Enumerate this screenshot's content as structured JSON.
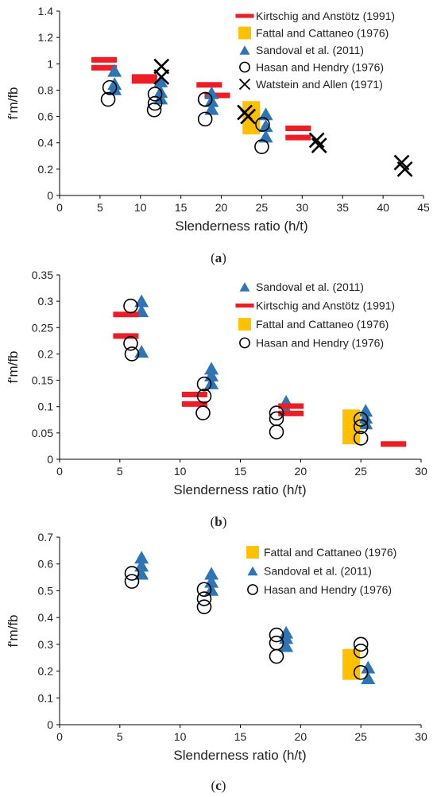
{
  "colors": {
    "kirtschig": "#ee1c24",
    "fattal": "#ffc000",
    "sandoval": "#2e75b6",
    "hasan": "#000000",
    "watstein": "#000000"
  },
  "chart_data": [
    {
      "type": "scatter",
      "panel_label": "a",
      "xlabel": "Slenderness ratio (h/t)",
      "ylabel": "f'm/fb",
      "xlim": [
        0,
        45
      ],
      "ylim": [
        0,
        1.4
      ],
      "xticks": [
        "0",
        "5",
        "10",
        "15",
        "20",
        "25",
        "30",
        "35",
        "40",
        "45"
      ],
      "yticks": [
        "0",
        "0.2",
        "0.4",
        "0.6",
        "0.8",
        "1",
        "1.2",
        "1.4"
      ],
      "grid": false,
      "legend": "top-right",
      "series": [
        {
          "name": "Kirtschig and Anstötz (1991)",
          "marker": "dash",
          "color_key": "kirtschig",
          "x": [
            5.5,
            5.5,
            10.5,
            10.5,
            18.5,
            19.5,
            29.5,
            29.5
          ],
          "y": [
            1.03,
            0.97,
            0.9,
            0.87,
            0.84,
            0.76,
            0.51,
            0.44
          ]
        },
        {
          "name": "Fattal and Cattaneo (1976)",
          "marker": "square",
          "color_key": "fattal",
          "x": [
            23.7,
            23.7
          ],
          "y": [
            0.65,
            0.53
          ]
        },
        {
          "name": "Sandoval et al. (2011)",
          "marker": "triangle",
          "color_key": "sandoval",
          "x": [
            6.8,
            6.8,
            6.8,
            12.5,
            12.5,
            12.5,
            18.8,
            18.8,
            18.8,
            25.5,
            25.5,
            25.5
          ],
          "y": [
            0.95,
            0.85,
            0.81,
            0.87,
            0.79,
            0.74,
            0.78,
            0.72,
            0.66,
            0.62,
            0.53,
            0.45
          ]
        },
        {
          "name": "Hasan and Hendry (1976)",
          "marker": "circle",
          "color_key": "hasan",
          "x": [
            6.2,
            6.0,
            11.8,
            11.8,
            11.7,
            18.0,
            18.0,
            18.0,
            25.1,
            25.0
          ],
          "y": [
            0.82,
            0.73,
            0.77,
            0.7,
            0.65,
            0.73,
            0.58,
            0.73,
            0.54,
            0.37
          ]
        },
        {
          "name": "Watstein and Allen (1971)",
          "marker": "x",
          "color_key": "watstein",
          "x": [
            12.6,
            12.6,
            22.9,
            23.3,
            31.8,
            32.1,
            42.3,
            42.7
          ],
          "y": [
            0.98,
            0.9,
            0.63,
            0.6,
            0.42,
            0.38,
            0.25,
            0.2
          ]
        }
      ]
    },
    {
      "type": "scatter",
      "panel_label": "b",
      "xlabel": "Slenderness ratio (h/t)",
      "ylabel": "f'm/fb",
      "xlim": [
        0,
        30
      ],
      "ylim": [
        0,
        0.35
      ],
      "xticks": [
        "0",
        "5",
        "10",
        "15",
        "20",
        "25",
        "30"
      ],
      "yticks": [
        "0",
        "0.05",
        "0.1",
        "0.15",
        "0.2",
        "0.25",
        "0.3",
        "0.35"
      ],
      "grid": false,
      "legend": "top-right",
      "series": [
        {
          "name": "Sandoval et al. (2011)",
          "marker": "triangle",
          "color_key": "sandoval",
          "x": [
            6.8,
            6.8,
            6.8,
            12.6,
            12.6,
            12.6,
            18.8,
            18.8,
            25.4,
            25.4,
            25.4
          ],
          "y": [
            0.301,
            0.282,
            0.205,
            0.173,
            0.16,
            0.145,
            0.11,
            0.095,
            0.093,
            0.08,
            0.069
          ]
        },
        {
          "name": "Kirtschig and Anstötz (1991)",
          "marker": "dash",
          "color_key": "kirtschig",
          "x": [
            5.5,
            5.5,
            11.2,
            11.2,
            19.2,
            19.2,
            27.7
          ],
          "y": [
            0.275,
            0.234,
            0.123,
            0.105,
            0.101,
            0.087,
            0.029
          ]
        },
        {
          "name": "Fattal and Cattaneo (1976)",
          "marker": "square",
          "color_key": "fattal",
          "x": [
            24.2,
            24.2
          ],
          "y": [
            0.078,
            0.045
          ]
        },
        {
          "name": "Hasan and Hendry (1976)",
          "marker": "circle",
          "color_key": "hasan",
          "x": [
            5.9,
            5.9,
            6.0,
            12.0,
            12.0,
            11.9,
            18.0,
            18.0,
            18.0,
            25.0,
            25.0,
            25.0
          ],
          "y": [
            0.291,
            0.22,
            0.2,
            0.143,
            0.12,
            0.088,
            0.088,
            0.077,
            0.052,
            0.076,
            0.062,
            0.04
          ]
        }
      ]
    },
    {
      "type": "scatter",
      "panel_label": "c",
      "xlabel": "Slenderness ratio (h/t)",
      "ylabel": "f'm/fb",
      "xlim": [
        0,
        30
      ],
      "ylim": [
        0,
        0.7
      ],
      "xticks": [
        "0",
        "5",
        "10",
        "15",
        "20",
        "25",
        "30"
      ],
      "yticks": [
        "0",
        "0.1",
        "0.2",
        "0.3",
        "0.4",
        "0.5",
        "0.6",
        "0.7"
      ],
      "grid": false,
      "legend": "top-right",
      "series": [
        {
          "name": "Fattal and Cattaneo (1976)",
          "marker": "square",
          "color_key": "fattal",
          "x": [
            24.2,
            24.2
          ],
          "y": [
            0.25,
            0.2
          ]
        },
        {
          "name": "Sandoval et al. (2011)",
          "marker": "triangle",
          "color_key": "sandoval",
          "x": [
            6.8,
            6.8,
            6.8,
            12.6,
            12.6,
            12.6,
            18.8,
            18.8,
            18.8,
            25.6,
            25.6
          ],
          "y": [
            0.625,
            0.595,
            0.565,
            0.565,
            0.535,
            0.505,
            0.345,
            0.325,
            0.295,
            0.215,
            0.175
          ]
        },
        {
          "name": "Hasan and Hendry (1976)",
          "marker": "circle",
          "color_key": "hasan",
          "x": [
            6.0,
            6.0,
            12.0,
            12.0,
            12.0,
            18.0,
            18.0,
            18.0,
            25.0,
            25.0,
            25.0
          ],
          "y": [
            0.565,
            0.535,
            0.505,
            0.47,
            0.44,
            0.335,
            0.305,
            0.255,
            0.3,
            0.275,
            0.195
          ]
        }
      ]
    }
  ]
}
